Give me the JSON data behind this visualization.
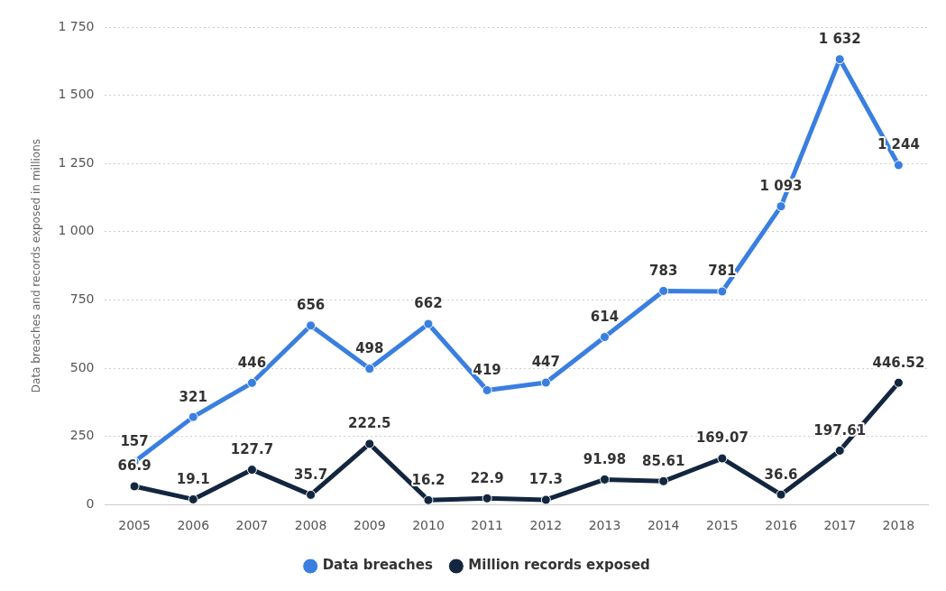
{
  "chart_data": {
    "type": "line",
    "ylabel": "Data breaches and records exposed in millions",
    "categories": [
      "2005",
      "2006",
      "2007",
      "2008",
      "2009",
      "2010",
      "2011",
      "2012",
      "2013",
      "2014",
      "2015",
      "2016",
      "2017",
      "2018"
    ],
    "series": [
      {
        "name": "Data breaches",
        "color": "#3a7fe0",
        "values": [
          157,
          321,
          446,
          656,
          498,
          662,
          419,
          447,
          614,
          783,
          781,
          1093,
          1632,
          1244
        ],
        "value_labels": [
          "157",
          "321",
          "446",
          "656",
          "498",
          "662",
          "419",
          "447",
          "614",
          "783",
          "781",
          "1 093",
          "1 632",
          "1 244"
        ]
      },
      {
        "name": "Million records exposed",
        "color": "#13263f",
        "values": [
          66.9,
          19.1,
          127.7,
          35.7,
          222.5,
          16.2,
          22.9,
          17.3,
          91.98,
          85.61,
          169.07,
          36.6,
          197.61,
          446.52
        ],
        "value_labels": [
          "66.9",
          "19.1",
          "127.7",
          "35.7",
          "222.5",
          "16.2",
          "22.9",
          "17.3",
          "91.98",
          "85.61",
          "169.07",
          "36.6",
          "197.61",
          "446.52"
        ]
      }
    ],
    "ylim": [
      0,
      1750
    ],
    "yticks": [
      0,
      250,
      500,
      750,
      {
        "value": 1000,
        "label": "1 000"
      },
      {
        "value": 1250,
        "label": "1 250"
      },
      {
        "value": 1500,
        "label": "1 500"
      },
      {
        "value": 1750,
        "label": "1 750"
      }
    ],
    "grid": "y",
    "legend": "bottom",
    "marker": "circle",
    "line_style": "solid"
  }
}
